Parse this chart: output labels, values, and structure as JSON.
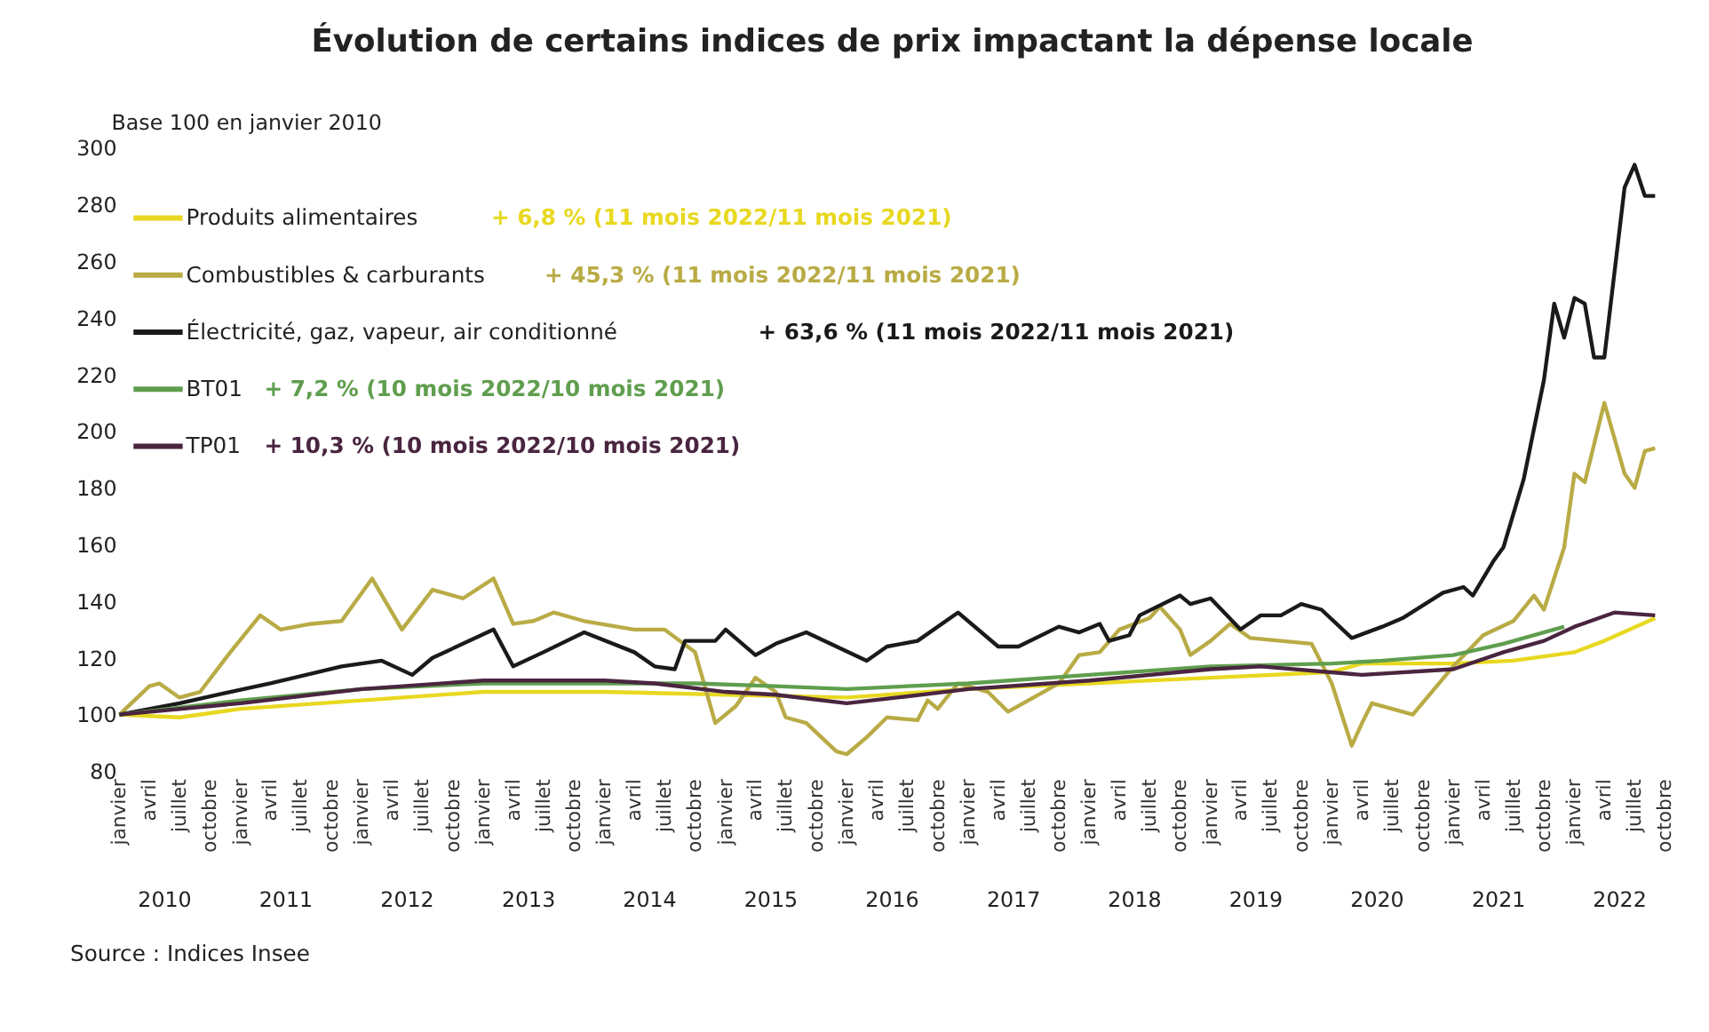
{
  "chart_data": {
    "type": "line",
    "title": "Évolution de certains indices de prix impactant la dépense locale",
    "ylabel": "Base 100 en janvier 2010",
    "xlim": [
      "2010-01",
      "2022-10"
    ],
    "ylim": [
      80,
      300
    ],
    "yticks": [
      80,
      100,
      120,
      140,
      160,
      180,
      200,
      220,
      240,
      260,
      280,
      300
    ],
    "xticks": [
      {
        "value": "2010-01",
        "label": "janvier"
      },
      {
        "value": "2010-04",
        "label": "avril"
      },
      {
        "value": "2010-07",
        "label": "juillet"
      },
      {
        "value": "2010-10",
        "label": "octobre"
      },
      {
        "value": "2011-01",
        "label": "janvier"
      },
      {
        "value": "2011-04",
        "label": "avril"
      },
      {
        "value": "2011-07",
        "label": "juillet"
      },
      {
        "value": "2011-10",
        "label": "octobre"
      },
      {
        "value": "2012-01",
        "label": "janvier"
      },
      {
        "value": "2012-04",
        "label": "avril"
      },
      {
        "value": "2012-07",
        "label": "juillet"
      },
      {
        "value": "2012-10",
        "label": "octobre"
      },
      {
        "value": "2013-01",
        "label": "janvier"
      },
      {
        "value": "2013-04",
        "label": "avril"
      },
      {
        "value": "2013-07",
        "label": "juillet"
      },
      {
        "value": "2013-10",
        "label": "octobre"
      },
      {
        "value": "2014-01",
        "label": "janvier"
      },
      {
        "value": "2014-04",
        "label": "avril"
      },
      {
        "value": "2014-07",
        "label": "juillet"
      },
      {
        "value": "2014-10",
        "label": "octobre"
      },
      {
        "value": "2015-01",
        "label": "janvier"
      },
      {
        "value": "2015-04",
        "label": "avril"
      },
      {
        "value": "2015-07",
        "label": "juillet"
      },
      {
        "value": "2015-10",
        "label": "octobre"
      },
      {
        "value": "2016-01",
        "label": "janvier"
      },
      {
        "value": "2016-04",
        "label": "avril"
      },
      {
        "value": "2016-07",
        "label": "juillet"
      },
      {
        "value": "2016-10",
        "label": "octobre"
      },
      {
        "value": "2017-01",
        "label": "janvier"
      },
      {
        "value": "2017-04",
        "label": "avril"
      },
      {
        "value": "2017-07",
        "label": "juillet"
      },
      {
        "value": "2017-10",
        "label": "octobre"
      },
      {
        "value": "2018-01",
        "label": "janvier"
      },
      {
        "value": "2018-04",
        "label": "avril"
      },
      {
        "value": "2018-07",
        "label": "juillet"
      },
      {
        "value": "2018-10",
        "label": "octobre"
      },
      {
        "value": "2019-01",
        "label": "janvier"
      },
      {
        "value": "2019-04",
        "label": "avril"
      },
      {
        "value": "2019-07",
        "label": "juillet"
      },
      {
        "value": "2019-10",
        "label": "octobre"
      },
      {
        "value": "2020-01",
        "label": "janvier"
      },
      {
        "value": "2020-04",
        "label": "avril"
      },
      {
        "value": "2020-07",
        "label": "juillet"
      },
      {
        "value": "2020-10",
        "label": "octobre"
      },
      {
        "value": "2021-01",
        "label": "janvier"
      },
      {
        "value": "2021-04",
        "label": "avril"
      },
      {
        "value": "2021-07",
        "label": "juillet"
      },
      {
        "value": "2021-10",
        "label": "octobre"
      },
      {
        "value": "2022-01",
        "label": "janvier"
      },
      {
        "value": "2022-04",
        "label": "avril"
      },
      {
        "value": "2022-07",
        "label": "juillet"
      },
      {
        "value": "2022-10",
        "label": "octobre"
      }
    ],
    "legend": "top left",
    "grid": false,
    "marker": "none",
    "line_style": "solid",
    "series": [
      {
        "name": "Produits alimentaires",
        "color": "#e8d820",
        "x": [
          "2010-01",
          "2010-07",
          "2011-01",
          "2012-01",
          "2013-01",
          "2014-01",
          "2015-01",
          "2016-01",
          "2017-01",
          "2018-01",
          "2019-01",
          "2020-01",
          "2020-04",
          "2021-01",
          "2021-07",
          "2022-01",
          "2022-04",
          "2022-09"
        ],
        "values": [
          100,
          99,
          102,
          105,
          108,
          108,
          107,
          106,
          109,
          111,
          113,
          115,
          118,
          118,
          119,
          122,
          126,
          134
        ]
      },
      {
        "name": "Combustibles & carburants",
        "color": "#b9ab45",
        "x": [
          "2010-01",
          "2010-04",
          "2010-05",
          "2010-07",
          "2010-09",
          "2010-12",
          "2011-03",
          "2011-05",
          "2011-08",
          "2011-11",
          "2012-02",
          "2012-05",
          "2012-08",
          "2012-11",
          "2013-02",
          "2013-04",
          "2013-06",
          "2013-08",
          "2013-11",
          "2014-04",
          "2014-07",
          "2014-10",
          "2014-12",
          "2015-02",
          "2015-04",
          "2015-06",
          "2015-07",
          "2015-09",
          "2015-12",
          "2016-01",
          "2016-03",
          "2016-05",
          "2016-08",
          "2016-09",
          "2016-10",
          "2016-12",
          "2017-03",
          "2017-05",
          "2017-07",
          "2017-10",
          "2017-12",
          "2018-02",
          "2018-04",
          "2018-07",
          "2018-08",
          "2018-10",
          "2018-11",
          "2019-01",
          "2019-03",
          "2019-05",
          "2019-08",
          "2019-11",
          "2020-01",
          "2020-03",
          "2020-04",
          "2020-05",
          "2020-08",
          "2020-09",
          "2021-01",
          "2021-04",
          "2021-07",
          "2021-09",
          "2021-10",
          "2021-12",
          "2022-01",
          "2022-02",
          "2022-04",
          "2022-06",
          "2022-07",
          "2022-08",
          "2022-09"
        ],
        "values": [
          100,
          110,
          111,
          106,
          108,
          122,
          135,
          130,
          132,
          133,
          148,
          130,
          144,
          141,
          148,
          132,
          133,
          136,
          133,
          130,
          130,
          122,
          97,
          103,
          113,
          108,
          99,
          97,
          87,
          86,
          92,
          99,
          98,
          105,
          102,
          111,
          108,
          101,
          105,
          111,
          121,
          122,
          130,
          134,
          138,
          130,
          121,
          126,
          132,
          127,
          126,
          125,
          111,
          89,
          97,
          104,
          101,
          100,
          117,
          128,
          133,
          142,
          137,
          159,
          185,
          182,
          210,
          185,
          180,
          193,
          194
        ]
      },
      {
        "name": "Électricité, gaz, vapeur, air conditionné",
        "color": "#1a1a1a",
        "x": [
          "2010-01",
          "2010-07",
          "2010-12",
          "2011-04",
          "2011-11",
          "2012-03",
          "2012-06",
          "2012-08",
          "2013-02",
          "2013-04",
          "2013-07",
          "2013-11",
          "2014-04",
          "2014-06",
          "2014-08",
          "2014-09",
          "2014-12",
          "2015-01",
          "2015-04",
          "2015-06",
          "2015-09",
          "2015-12",
          "2016-03",
          "2016-05",
          "2016-08",
          "2016-12",
          "2017-04",
          "2017-06",
          "2017-10",
          "2017-12",
          "2018-02",
          "2018-03",
          "2018-05",
          "2018-06",
          "2018-10",
          "2018-11",
          "2019-01",
          "2019-04",
          "2019-06",
          "2019-08",
          "2019-10",
          "2019-12",
          "2020-03",
          "2020-06",
          "2020-08",
          "2020-12",
          "2021-02",
          "2021-03",
          "2021-05",
          "2021-06",
          "2021-08",
          "2021-10",
          "2021-11",
          "2021-12",
          "2022-01",
          "2022-02",
          "2022-03",
          "2022-04",
          "2022-06",
          "2022-07",
          "2022-08",
          "2022-09"
        ],
        "values": [
          100,
          104,
          108,
          111,
          117,
          119,
          114,
          120,
          130,
          117,
          122,
          129,
          122,
          117,
          116,
          126,
          126,
          130,
          121,
          125,
          129,
          124,
          119,
          124,
          126,
          136,
          124,
          124,
          131,
          129,
          132,
          126,
          128,
          135,
          142,
          139,
          141,
          130,
          135,
          135,
          139,
          137,
          127,
          131,
          134,
          143,
          145,
          142,
          154,
          159,
          183,
          218,
          245,
          233,
          247,
          245,
          226,
          226,
          286,
          294,
          283,
          283
        ]
      },
      {
        "name": "BT01",
        "color": "#5f9e4e",
        "x": [
          "2010-01",
          "2011-01",
          "2012-01",
          "2013-01",
          "2014-01",
          "2014-10",
          "2015-06",
          "2016-01",
          "2017-01",
          "2018-01",
          "2019-01",
          "2020-01",
          "2020-06",
          "2021-01",
          "2021-06",
          "2021-12"
        ],
        "values": [
          100,
          105,
          109,
          111,
          111,
          111,
          110,
          109,
          111,
          114,
          117,
          118,
          119,
          121,
          125,
          131
        ]
      },
      {
        "name": "TP01",
        "color": "#4a2540",
        "x": [
          "2010-01",
          "2011-01",
          "2012-01",
          "2013-01",
          "2014-01",
          "2014-06",
          "2015-01",
          "2015-06",
          "2016-01",
          "2016-06",
          "2017-01",
          "2018-01",
          "2019-01",
          "2019-06",
          "2020-04",
          "2021-01",
          "2021-06",
          "2021-10",
          "2022-01",
          "2022-05",
          "2022-09"
        ],
        "values": [
          100,
          104,
          109,
          112,
          112,
          111,
          108,
          107,
          104,
          106,
          109,
          112,
          116,
          117,
          114,
          116,
          122,
          126,
          131,
          136,
          135
        ]
      }
    ],
    "annotations": [
      "+ 6,8 % (11 mois 2022/11 mois 2021)",
      "+ 45,3 % (11 mois 2022/11 mois 2021)",
      "+ 63,6 % (11 mois 2022/11 mois 2021)",
      "+ 7,2 % (10 mois 2022/10 mois 2021)",
      "+ 10,3 % (10 mois 2022/10 mois 2021)",
      "Source : Indices Insee",
      "2010",
      "2011",
      "2012",
      "2013",
      "2014",
      "2015",
      "2016",
      "2017",
      "2018",
      "2019",
      "2020",
      "2021",
      "2022"
    ]
  }
}
